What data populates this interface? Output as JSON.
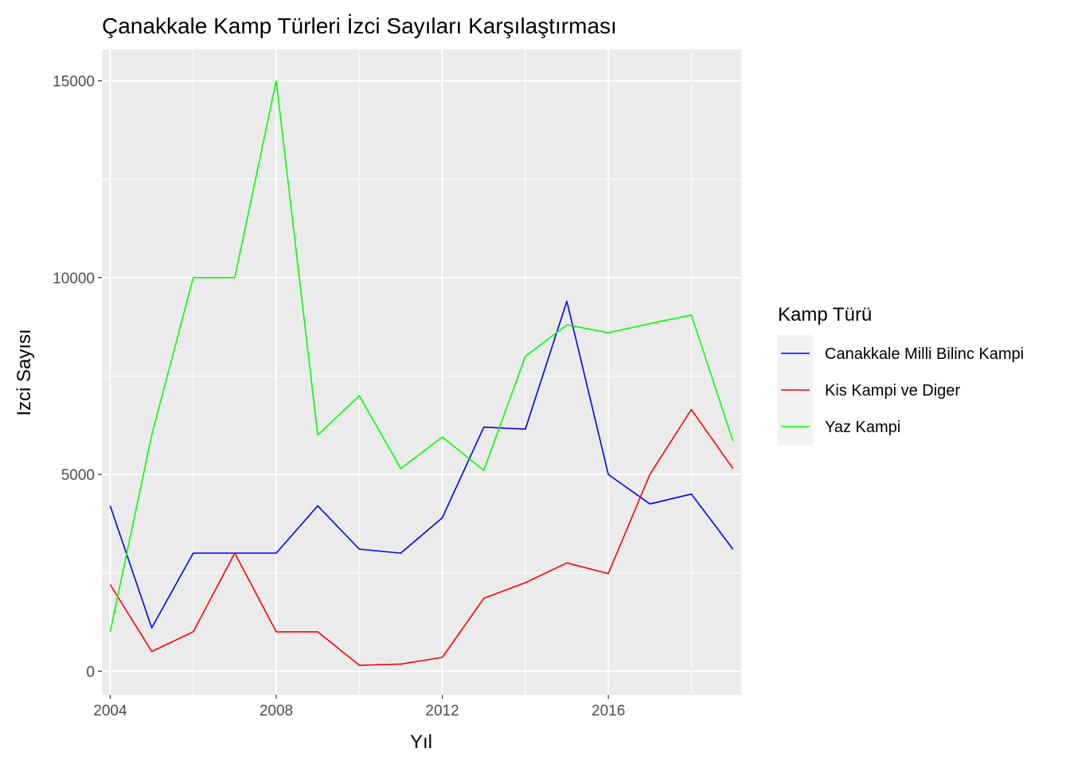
{
  "chart_data": {
    "type": "line",
    "title": "Çanakkale Kamp Türleri İzci Sayıları Karşılaştırması",
    "xlabel": "Yıl",
    "ylabel": "Izci Sayısı",
    "xlim": [
      2003.8,
      2019.2
    ],
    "ylim": [
      -600,
      15800
    ],
    "x_ticks": [
      2004,
      2008,
      2012,
      2016
    ],
    "x_tick_labels": [
      "2004",
      "2008",
      "2012",
      "2016"
    ],
    "y_ticks": [
      0,
      5000,
      10000,
      15000
    ],
    "y_tick_labels": [
      "0",
      "5000",
      "10000",
      "15000"
    ],
    "grid": true,
    "legend": {
      "title": "Kamp Türü",
      "position": "right"
    },
    "x": [
      2004,
      2005,
      2006,
      2007,
      2008,
      2009,
      2010,
      2011,
      2012,
      2013,
      2014,
      2015,
      2016,
      2017,
      2018,
      2019
    ],
    "series": [
      {
        "name": "Canakkale Milli Bilinc Kampi",
        "color": "#0000ff",
        "values": [
          4200,
          1100,
          3000,
          3000,
          3000,
          4200,
          3100,
          3000,
          3900,
          6200,
          6150,
          9400,
          5000,
          4250,
          4500,
          3100
        ]
      },
      {
        "name": "Kis Kampi ve Diger",
        "color": "#ff0000",
        "values": [
          2200,
          500,
          1000,
          3000,
          1000,
          1000,
          150,
          180,
          350,
          1850,
          2250,
          2750,
          2480,
          5000,
          6650,
          5150
        ]
      },
      {
        "name": "Yaz Kampi",
        "color": "#00ff00",
        "values": [
          1000,
          6000,
          10000,
          10000,
          15000,
          6000,
          7000,
          5150,
          5950,
          5100,
          8000,
          8800,
          8600,
          8830,
          9050,
          5850
        ]
      }
    ]
  }
}
